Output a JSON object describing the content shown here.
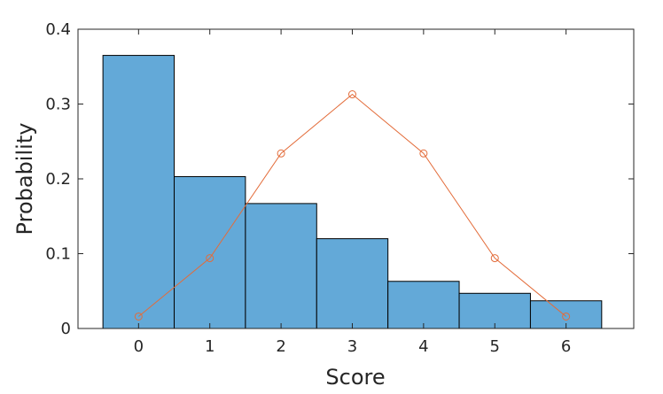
{
  "chart_data": {
    "type": "bar",
    "xlabel": "Score",
    "ylabel": "Probability",
    "xlim": [
      -0.85,
      6.95
    ],
    "ylim": [
      0,
      0.4
    ],
    "xticks": [
      "0",
      "1",
      "2",
      "3",
      "4",
      "5",
      "6"
    ],
    "yticks": [
      "0",
      "0.1",
      "0.2",
      "0.3",
      "0.4"
    ],
    "grid": false,
    "bar_color": "#63a9d8",
    "line_color": "#e36c3a",
    "series": [
      {
        "kind": "bar",
        "x": [
          0,
          1,
          2,
          3,
          4,
          5,
          6
        ],
        "values": [
          0.365,
          0.203,
          0.167,
          0.12,
          0.063,
          0.047,
          0.037
        ]
      },
      {
        "kind": "line-with-circle-markers",
        "x": [
          0,
          1,
          2,
          3,
          4,
          5,
          6
        ],
        "values": [
          0.016,
          0.094,
          0.234,
          0.313,
          0.234,
          0.094,
          0.016
        ]
      }
    ]
  }
}
